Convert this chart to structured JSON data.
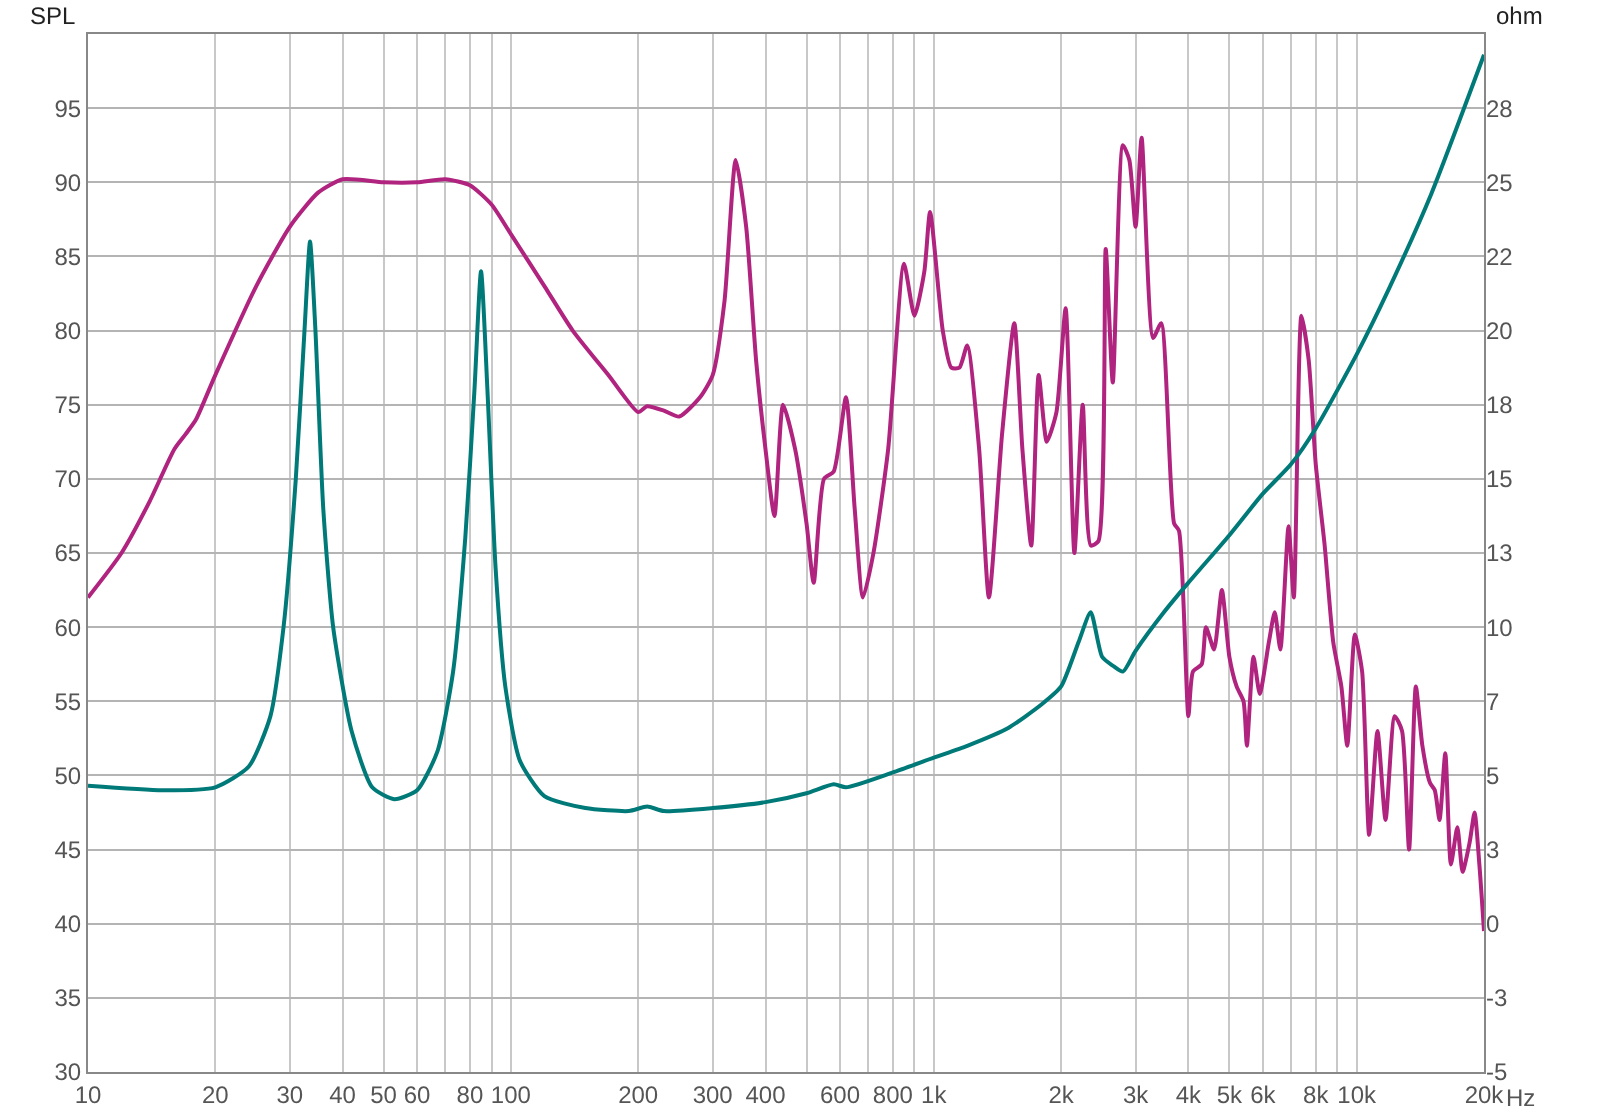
{
  "chart_data": {
    "type": "line",
    "ylabel": "SPL",
    "y2label": "ohm",
    "log": "x",
    "grid": true,
    "marker": "none",
    "line_style": "solid",
    "xlim": [
      10,
      20000
    ],
    "xticks": [
      10,
      20,
      30,
      40,
      50,
      60,
      {
        "value": 70,
        "label": null
      },
      80,
      {
        "value": 90,
        "label": null
      },
      100,
      200,
      300,
      400,
      {
        "value": 500,
        "label": null
      },
      600,
      {
        "value": 700,
        "label": null
      },
      800,
      {
        "value": 900,
        "label": null
      },
      {
        "value": 1000,
        "label": "1k"
      },
      {
        "value": 2000,
        "label": "2k"
      },
      {
        "value": 3000,
        "label": "3k"
      },
      {
        "value": 4000,
        "label": "4k"
      },
      {
        "value": 5000,
        "label": "5k"
      },
      {
        "value": 6000,
        "label": "6k"
      },
      {
        "value": 7000,
        "label": null
      },
      {
        "value": 8000,
        "label": "8k"
      },
      {
        "value": 9000,
        "label": null
      },
      {
        "value": 10000,
        "label": "10k"
      },
      {
        "value": 20000,
        "label": "20k"
      }
    ],
    "xlabel": "Hz",
    "ylim": [
      30,
      100
    ],
    "yticks": [
      30,
      35,
      40,
      45,
      50,
      55,
      60,
      65,
      70,
      75,
      80,
      85,
      90,
      95
    ],
    "y2lim": [
      -5,
      30
    ],
    "y2ticks": [
      -5,
      {
        "value": -2.5,
        "label": "-3"
      },
      0,
      {
        "value": 2.5,
        "label": "3"
      },
      5,
      {
        "value": 7.5,
        "label": "7"
      },
      10,
      {
        "value": 12.5,
        "label": "13"
      },
      15,
      {
        "value": 17.5,
        "label": "18"
      },
      20,
      {
        "value": 22.5,
        "label": "22"
      },
      25,
      {
        "value": 27.5,
        "label": "28"
      }
    ],
    "series": [
      {
        "color": "#b0237e",
        "x": [
          10,
          12,
          14,
          16,
          17,
          18,
          20,
          25,
          30,
          35,
          40,
          50,
          60,
          70,
          80,
          90,
          100,
          120,
          140,
          170,
          200,
          210,
          230,
          250,
          280,
          300,
          320,
          340,
          360,
          380,
          400,
          420,
          440,
          470,
          500,
          520,
          550,
          580,
          620,
          650,
          680,
          720,
          780,
          850,
          900,
          950,
          980,
          1050,
          1100,
          1150,
          1200,
          1280,
          1350,
          1450,
          1550,
          1620,
          1700,
          1770,
          1850,
          1950,
          2050,
          2150,
          2250,
          2350,
          2450,
          2550,
          2650,
          2800,
          2900,
          3000,
          3100,
          3300,
          3450,
          3700,
          3800,
          4000,
          4100,
          4300,
          4400,
          4600,
          4800,
          5000,
          5200,
          5400,
          5500,
          5700,
          5900,
          6200,
          6400,
          6600,
          6900,
          7100,
          7400,
          7700,
          8000,
          8400,
          8800,
          9200,
          9500,
          9900,
          10300,
          10700,
          11200,
          11700,
          12300,
          12800,
          13300,
          13800,
          14300,
          14900,
          15300,
          15700,
          16200,
          16700,
          17300,
          17800,
          18500,
          19000,
          19500,
          20000
        ],
        "values": [
          62,
          65,
          68.5,
          72,
          73,
          74,
          77,
          83,
          87,
          89.3,
          90.2,
          90,
          90,
          90.2,
          89.8,
          88.5,
          86.5,
          83,
          80,
          77,
          74.5,
          74.9,
          74.6,
          74.2,
          75.5,
          77,
          82,
          91.5,
          87,
          78,
          72,
          67.5,
          75,
          72,
          67,
          63,
          70,
          70.5,
          75.5,
          68,
          62,
          65,
          72,
          84.5,
          81,
          84,
          88,
          80,
          77.5,
          77.5,
          79,
          72,
          62,
          73,
          80.5,
          72,
          65.5,
          77,
          72.5,
          74.5,
          81.5,
          65,
          75,
          65.5,
          65.8,
          85.5,
          76.5,
          92.5,
          91.5,
          87,
          93,
          79.5,
          80.5,
          67,
          66.5,
          54,
          57,
          57.5,
          60,
          58.5,
          62.5,
          58,
          56,
          55,
          52,
          58,
          55.5,
          59,
          61,
          58.5,
          66.8,
          62,
          81,
          78,
          71,
          65.5,
          59,
          56,
          52,
          59.5,
          57,
          46,
          53,
          47,
          54,
          53,
          45,
          56,
          52,
          49.5,
          49,
          47,
          51.5,
          44,
          46.5,
          43.5,
          45.5,
          47.5,
          44,
          39.5
        ]
      },
      {
        "color": "#007a78",
        "axis": "y2",
        "x": [
          10,
          15,
          20,
          24,
          27,
          29,
          31,
          32.5,
          33.5,
          34.5,
          36,
          38,
          42,
          47,
          53,
          60,
          67,
          73,
          78,
          82,
          85,
          88,
          92,
          97,
          105,
          120,
          150,
          190,
          210,
          230,
          300,
          400,
          500,
          580,
          620,
          800,
          1000,
          1200,
          1500,
          1800,
          2000,
          2200,
          2350,
          2500,
          2650,
          2800,
          3000,
          3500,
          4000,
          5000,
          6000,
          7000,
          8000,
          10000,
          12000,
          15000,
          20000
        ],
        "values": [
          4.65,
          4.5,
          4.6,
          5.3,
          7,
          10,
          15,
          20,
          23,
          20,
          14,
          10,
          6.5,
          4.6,
          4.2,
          4.5,
          5.8,
          8.5,
          13,
          18,
          22,
          18,
          12,
          8,
          5.5,
          4.3,
          3.9,
          3.8,
          3.95,
          3.8,
          3.9,
          4.1,
          4.4,
          4.7,
          4.6,
          5.1,
          5.6,
          6.0,
          6.6,
          7.4,
          8.0,
          9.5,
          10.5,
          9,
          8.7,
          8.5,
          9.2,
          10.5,
          11.5,
          13.1,
          14.5,
          15.5,
          16.7,
          19.2,
          21.5,
          24.6,
          29.3
        ]
      }
    ]
  }
}
